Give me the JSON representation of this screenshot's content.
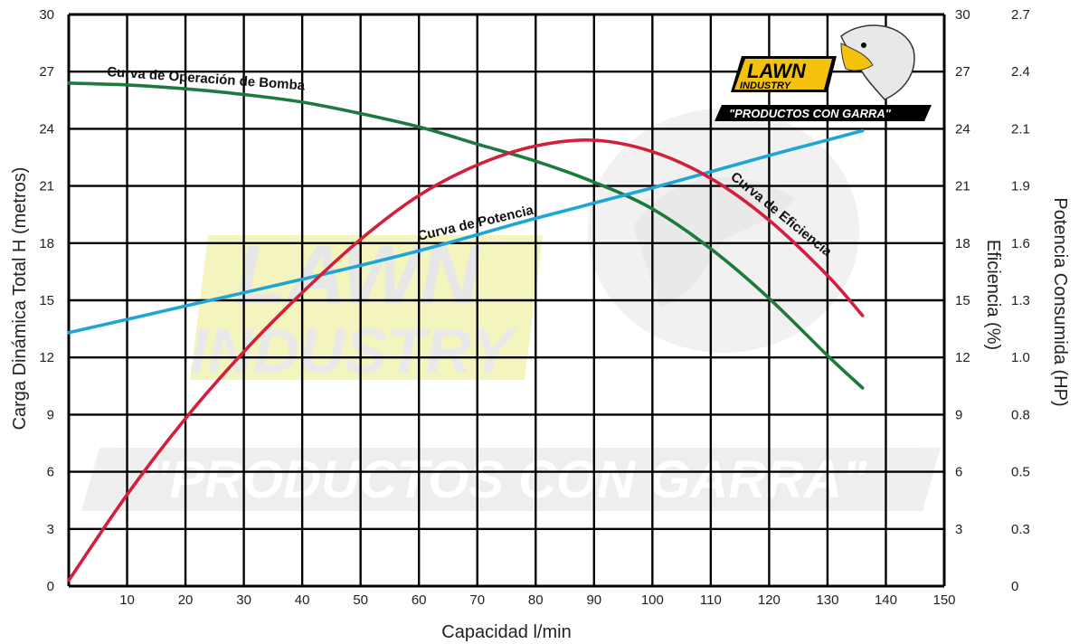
{
  "chart_data": {
    "type": "line",
    "xlabel": "Capacidad l/min",
    "ylabel_left": "Carga Dinámica Total H (metros)",
    "ylabel_right_inner": "Eficiencia (%)",
    "ylabel_right_outer": "Potencia Consumida (HP)",
    "xlim": [
      0,
      150
    ],
    "ylim": [
      0,
      30
    ],
    "grid": true,
    "x_ticks": [
      "10",
      "20",
      "30",
      "40",
      "50",
      "60",
      "70",
      "80",
      "90",
      "100",
      "110",
      "120",
      "130",
      "140",
      "150"
    ],
    "y_ticks_left": [
      "0",
      "3",
      "6",
      "9",
      "12",
      "15",
      "18",
      "21",
      "24",
      "27",
      "30"
    ],
    "y_ticks_right_inner": [
      "",
      "3",
      "6",
      "9",
      "12",
      "15",
      "18",
      "21",
      "24",
      "27",
      "30"
    ],
    "y_ticks_right_outer": [
      "0",
      "0.3",
      "0.5",
      "0.8",
      "1.0",
      "1.3",
      "1.6",
      "1.9",
      "2.1",
      "2.4",
      "2.7"
    ],
    "series": [
      {
        "name": "Curva de Operación de Bomba",
        "color": "#1c7a3e",
        "x": [
          0,
          10,
          20,
          30,
          40,
          50,
          60,
          70,
          80,
          90,
          100,
          110,
          120,
          130,
          136
        ],
        "y": [
          26.4,
          26.3,
          26.1,
          25.8,
          25.4,
          24.8,
          24.1,
          23.2,
          22.3,
          21.2,
          19.8,
          17.7,
          15.1,
          12.1,
          10.4
        ]
      },
      {
        "name": "Curva de Potencia",
        "color": "#1ea5d8",
        "x": [
          0,
          20,
          40,
          60,
          80,
          100,
          120,
          136
        ],
        "y": [
          13.3,
          14.7,
          16.1,
          17.6,
          19.3,
          20.9,
          22.6,
          23.9
        ]
      },
      {
        "name": "Curva de Eficiencia",
        "color": "#d31f3c",
        "x": [
          0,
          10,
          20,
          30,
          40,
          50,
          60,
          70,
          80,
          90,
          100,
          110,
          120,
          130,
          136
        ],
        "y": [
          0.3,
          4.8,
          8.8,
          12.3,
          15.4,
          18.2,
          20.5,
          22.1,
          23.1,
          23.4,
          22.8,
          21.4,
          19.2,
          16.3,
          14.2
        ]
      }
    ]
  },
  "labels": {
    "bomba": "Curva de Operación de Bomba",
    "potencia": "Curva de Potencia",
    "eficiencia": "Curva de Eficiencia"
  },
  "logo": {
    "brand_top": "LAWN",
    "brand_bottom": "INDUSTRY",
    "slogan": "\"PRODUCTOS CON GARRA\""
  }
}
